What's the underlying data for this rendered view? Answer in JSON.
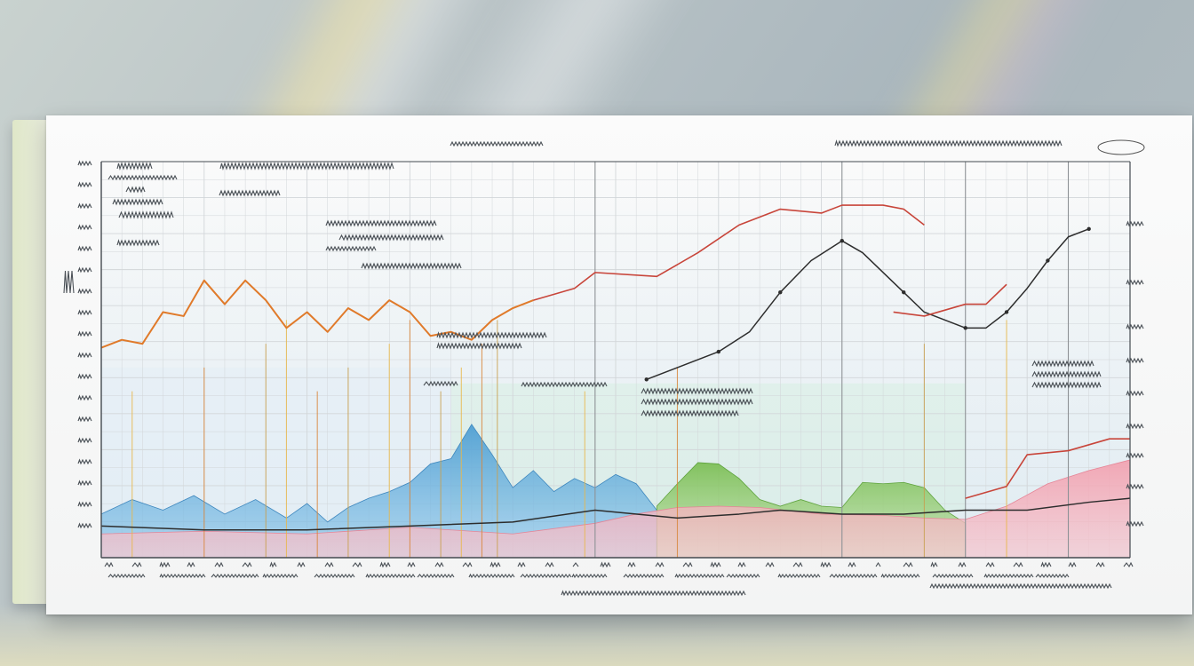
{
  "colors": {
    "paper": "#f6f7f7",
    "grid": "#d2d6d9",
    "axis": "#444a50",
    "red_line": "#c8453a",
    "dark_line": "#2d2d2d",
    "blue_fill": "#4f9fd3",
    "green_fill": "#7dbf57",
    "pink_fill": "#f29fae",
    "orange_line": "#e07a2a",
    "yellow_marker": "#e9b84a",
    "highlight_green": "#d7efe2"
  },
  "chart_data": {
    "type": "line",
    "title": "",
    "xlabel": "",
    "ylabel": "",
    "grid": true,
    "xlim": [
      0,
      100
    ],
    "ylim": [
      0,
      100
    ],
    "series": [
      {
        "style": "orange-line",
        "x": [
          0,
          2,
          4,
          6,
          8,
          10,
          12,
          14,
          16,
          18,
          20,
          22,
          24,
          26,
          28,
          30,
          32,
          34,
          36,
          38,
          40,
          42
        ],
        "y": [
          53,
          55,
          54,
          62,
          61,
          70,
          64,
          70,
          65,
          58,
          62,
          57,
          63,
          60,
          65,
          62,
          56,
          57,
          55,
          60,
          63,
          65
        ]
      },
      {
        "style": "red-line",
        "x": [
          42,
          46,
          48,
          54,
          58,
          62,
          66,
          70,
          72,
          76,
          78,
          80
        ],
        "y": [
          65,
          68,
          72,
          71,
          77,
          84,
          88,
          87,
          89,
          89,
          88,
          84
        ]
      },
      {
        "style": "dark-line",
        "x": [
          53,
          56,
          60,
          63,
          66,
          69,
          72,
          74,
          78,
          80,
          84,
          86,
          88,
          90,
          92,
          94,
          96
        ],
        "y": [
          45,
          48,
          52,
          57,
          67,
          75,
          80,
          77,
          67,
          62,
          58,
          58,
          62,
          68,
          75,
          81,
          83
        ]
      },
      {
        "style": "red-line",
        "x": [
          77,
          80,
          84,
          86,
          88
        ],
        "y": [
          62,
          61,
          64,
          64,
          69
        ]
      },
      {
        "style": "dark-line",
        "x": [
          0,
          10,
          20,
          30,
          40,
          48,
          56,
          62,
          66,
          72,
          78,
          84,
          90,
          96,
          100
        ],
        "y": [
          8,
          7,
          7,
          8,
          9,
          12,
          10,
          11,
          12,
          11,
          11,
          12,
          12,
          14,
          15
        ]
      },
      {
        "style": "red-line",
        "x": [
          84,
          88,
          90,
          94,
          98,
          100
        ],
        "y": [
          15,
          18,
          26,
          27,
          30,
          30
        ]
      }
    ],
    "bands": [
      {
        "style": "blue-fill",
        "x": [
          0,
          3,
          6,
          9,
          12,
          15,
          18,
          20,
          22,
          24,
          26,
          28,
          30,
          32,
          34,
          36,
          38,
          40,
          42,
          44,
          46,
          48,
          50,
          52,
          54
        ],
        "y": [
          11,
          14,
          12,
          15,
          11,
          14,
          10,
          13,
          9,
          12,
          15,
          16,
          19,
          23,
          25,
          33,
          26,
          17,
          22,
          16,
          20,
          17,
          21,
          18,
          12
        ]
      },
      {
        "style": "green-fill",
        "x": [
          54,
          56,
          58,
          60,
          62,
          64,
          66,
          68,
          70,
          72,
          74,
          76,
          78,
          80,
          82,
          84
        ],
        "y": [
          13,
          18,
          24,
          23,
          20,
          14,
          13,
          14,
          13,
          12,
          19,
          18,
          19,
          17,
          12,
          8
        ]
      },
      {
        "style": "pink-fill",
        "x": [
          0,
          10,
          20,
          30,
          40,
          48,
          52,
          56,
          60,
          64,
          70,
          76,
          80,
          84,
          88,
          92,
          96,
          100
        ],
        "y": [
          6,
          6,
          6,
          7,
          6,
          8,
          11,
          12,
          13,
          12,
          11,
          10,
          10,
          9,
          13,
          18,
          22,
          24
        ]
      }
    ]
  }
}
